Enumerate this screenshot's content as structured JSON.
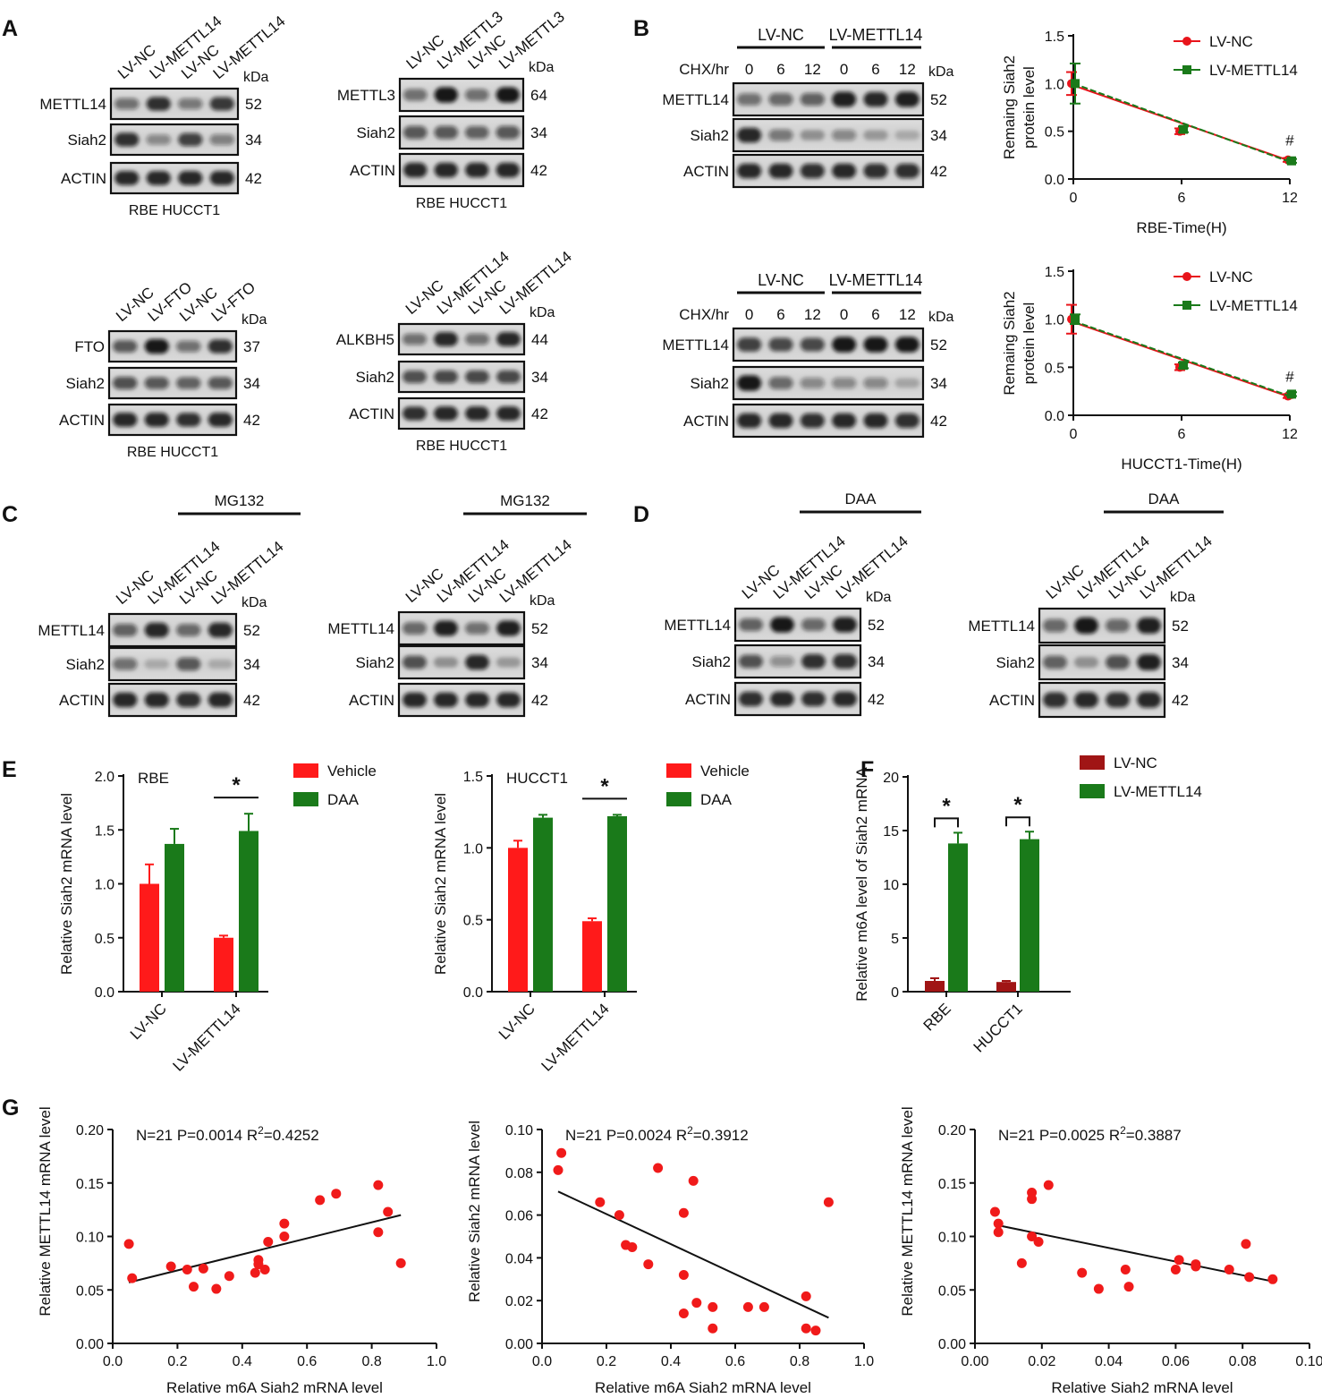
{
  "panel_letters": [
    "A",
    "B",
    "C",
    "D",
    "E",
    "F",
    "G"
  ],
  "text": {
    "kda": "kDa",
    "chx": "CHX/hr",
    "time_pts": [
      "0",
      "6",
      "12",
      "0",
      "6",
      "12"
    ],
    "lvnc": "LV-NC",
    "lvm14": "LV-METTL14",
    "mg132": "MG132",
    "daa": "DAA"
  },
  "blots": [
    {
      "id": "A1",
      "lanes": [
        "LV-NC",
        "LV-METTL14",
        "LV-NC",
        "LV-METTL14"
      ],
      "rows": [
        {
          "name": "METTL14",
          "kda": "52"
        },
        {
          "name": "Siah2",
          "kda": "34"
        },
        {
          "name": "ACTIN",
          "kda": "42"
        }
      ],
      "caption": "RBE HUCCT1"
    },
    {
      "id": "A2",
      "lanes": [
        "LV-NC",
        "LV-METTL3",
        "LV-NC",
        "LV-METTL3"
      ],
      "rows": [
        {
          "name": "METTL3",
          "kda": "64"
        },
        {
          "name": "Siah2",
          "kda": "34"
        },
        {
          "name": "ACTIN",
          "kda": "42"
        }
      ],
      "caption": "RBE HUCCT1"
    },
    {
      "id": "A3",
      "lanes": [
        "LV-NC",
        "LV-FTO",
        "LV-NC",
        "LV-FTO"
      ],
      "rows": [
        {
          "name": "FTO",
          "kda": "37"
        },
        {
          "name": "Siah2",
          "kda": "34"
        },
        {
          "name": "ACTIN",
          "kda": "42"
        }
      ],
      "caption": "RBE HUCCT1"
    },
    {
      "id": "A4",
      "lanes": [
        "LV-NC",
        "LV-METTL14",
        "LV-NC",
        "LV-METTL14"
      ],
      "rows": [
        {
          "name": "ALKBH5",
          "kda": "44"
        },
        {
          "name": "Siah2",
          "kda": "34"
        },
        {
          "name": "ACTIN",
          "kda": "42"
        }
      ],
      "caption": "RBE HUCCT1"
    },
    {
      "id": "B1",
      "rows": [
        {
          "name": "METTL14",
          "kda": "52"
        },
        {
          "name": "Siah2",
          "kda": "34"
        },
        {
          "name": "ACTIN",
          "kda": "42"
        }
      ]
    },
    {
      "id": "B2",
      "rows": [
        {
          "name": "METTL14",
          "kda": "52"
        },
        {
          "name": "Siah2",
          "kda": "34"
        },
        {
          "name": "ACTIN",
          "kda": "42"
        }
      ]
    },
    {
      "id": "C1",
      "lanes": [
        "LV-NC",
        "LV-METTL14",
        "LV-NC",
        "LV-METTL14"
      ],
      "treat": "MG132",
      "rows": [
        {
          "name": "METTL14",
          "kda": "52"
        },
        {
          "name": "Siah2",
          "kda": "34"
        },
        {
          "name": "ACTIN",
          "kda": "42"
        }
      ]
    },
    {
      "id": "C2",
      "lanes": [
        "LV-NC",
        "LV-METTL14",
        "LV-NC",
        "LV-METTL14"
      ],
      "treat": "MG132",
      "rows": [
        {
          "name": "METTL14",
          "kda": "52"
        },
        {
          "name": "Siah2",
          "kda": "34"
        },
        {
          "name": "ACTIN",
          "kda": "42"
        }
      ]
    },
    {
      "id": "D1",
      "lanes": [
        "LV-NC",
        "LV-METTL14",
        "LV-NC",
        "LV-METTL14"
      ],
      "treat": "DAA",
      "rows": [
        {
          "name": "METTL14",
          "kda": "52"
        },
        {
          "name": "Siah2",
          "kda": "34"
        },
        {
          "name": "ACTIN",
          "kda": "42"
        }
      ]
    },
    {
      "id": "D2",
      "lanes": [
        "LV-NC",
        "LV-METTL14",
        "LV-NC",
        "LV-METTL14"
      ],
      "treat": "DAA",
      "rows": [
        {
          "name": "METTL14",
          "kda": "52"
        },
        {
          "name": "Siah2",
          "kda": "34"
        },
        {
          "name": "ACTIN",
          "kda": "42"
        }
      ]
    }
  ],
  "chart_data": [
    {
      "id": "B_RBE",
      "type": "line",
      "xlabel": "RBE-Time(H)",
      "ylabel": "Remaing Siah2 protein level",
      "x": [
        0,
        6,
        12
      ],
      "xlim": [
        0,
        12
      ],
      "ylim": [
        0,
        1.5
      ],
      "xticks": [
        "0",
        "6",
        "12"
      ],
      "yticks": [
        "0.0",
        "0.5",
        "1.0",
        "1.5"
      ],
      "series": [
        {
          "name": "LV-NC",
          "color": "#e8141b",
          "values": [
            1.0,
            0.5,
            0.2
          ],
          "err": [
            0.12,
            0.03,
            0.02
          ],
          "fit": [
            0.98,
            0.19
          ]
        },
        {
          "name": "LV-METTL14",
          "color": "#1a7a1a",
          "values": [
            1.0,
            0.52,
            0.19
          ],
          "err": [
            0.21,
            0.03,
            0.02
          ],
          "fit": [
            1.0,
            0.18
          ]
        }
      ],
      "annotation": "#"
    },
    {
      "id": "B_HUCCT1",
      "type": "line",
      "xlabel": "HUCCT1-Time(H)",
      "ylabel": "Remaing Siah2 protein level",
      "x": [
        0,
        6,
        12
      ],
      "xlim": [
        0,
        12
      ],
      "ylim": [
        0,
        1.5
      ],
      "xticks": [
        "0",
        "6",
        "12"
      ],
      "yticks": [
        "0.0",
        "0.5",
        "1.0",
        "1.5"
      ],
      "series": [
        {
          "name": "LV-NC",
          "color": "#e8141b",
          "values": [
            1.0,
            0.5,
            0.2
          ],
          "err": [
            0.15,
            0.03,
            0.02
          ],
          "fit": [
            0.97,
            0.19
          ]
        },
        {
          "name": "LV-METTL14",
          "color": "#1a7a1a",
          "values": [
            1.0,
            0.52,
            0.22
          ],
          "err": [
            0.05,
            0.03,
            0.02
          ],
          "fit": [
            0.98,
            0.2
          ]
        }
      ],
      "annotation": "#"
    },
    {
      "id": "E_RBE",
      "type": "bar",
      "title": "RBE",
      "ylabel": "Relative Siah2 mRNA level",
      "categories": [
        "LV-NC",
        "LV-METTL14"
      ],
      "ylim": [
        0,
        2.0
      ],
      "yticks": [
        "0.0",
        "0.5",
        "1.0",
        "1.5",
        "2.0"
      ],
      "series": [
        {
          "name": "Vehicle",
          "color": "#ff1a1a",
          "values": [
            1.0,
            0.5
          ],
          "err": [
            0.18,
            0.02
          ]
        },
        {
          "name": "DAA",
          "color": "#1a7a1a",
          "values": [
            1.37,
            1.49
          ],
          "err": [
            0.14,
            0.16
          ]
        }
      ],
      "significance": "*"
    },
    {
      "id": "E_HUCCT1",
      "type": "bar",
      "title": "HUCCT1",
      "ylabel": "Relative Siah2 mRNA level",
      "categories": [
        "LV-NC",
        "LV-METTL14"
      ],
      "ylim": [
        0,
        1.5
      ],
      "yticks": [
        "0.0",
        "0.5",
        "1.0",
        "1.5"
      ],
      "series": [
        {
          "name": "Vehicle",
          "color": "#ff1a1a",
          "values": [
            1.0,
            0.49
          ],
          "err": [
            0.05,
            0.02
          ]
        },
        {
          "name": "DAA",
          "color": "#1a7a1a",
          "values": [
            1.21,
            1.22
          ],
          "err": [
            0.02,
            0.01
          ]
        }
      ],
      "significance": "*"
    },
    {
      "id": "F",
      "type": "bar",
      "ylabel": "Relative m6A level of Siah2 mRNA",
      "categories": [
        "RBE",
        "HUCCT1"
      ],
      "ylim": [
        0,
        20
      ],
      "yticks": [
        "0",
        "5",
        "10",
        "15",
        "20"
      ],
      "series": [
        {
          "name": "LV-NC",
          "color": "#a01515",
          "values": [
            1.0,
            0.9
          ],
          "err": [
            0.25,
            0.1
          ]
        },
        {
          "name": "LV-METTL14",
          "color": "#1a7a1a",
          "values": [
            13.8,
            14.2
          ],
          "err": [
            1.0,
            0.7
          ]
        }
      ],
      "significance": "*"
    },
    {
      "id": "G1",
      "type": "scatter",
      "stats": "N=21 P=0.0014  R",
      "stats_tail": "=0.4252",
      "sup": "2",
      "xlabel": "Relative m6A Siah2 mRNA level",
      "ylabel": "Relative METTL14 mRNA level",
      "xlim": [
        0,
        1.0
      ],
      "ylim": [
        0,
        0.2
      ],
      "xticks": [
        "0.0",
        "0.2",
        "0.4",
        "0.6",
        "0.8",
        "1.0"
      ],
      "yticks": [
        "0.00",
        "0.05",
        "0.10",
        "0.15",
        "0.20"
      ],
      "fit": [
        [
          0.05,
          0.057
        ],
        [
          0.89,
          0.12
        ]
      ],
      "points": [
        [
          0.05,
          0.093
        ],
        [
          0.06,
          0.061
        ],
        [
          0.18,
          0.072
        ],
        [
          0.23,
          0.069
        ],
        [
          0.25,
          0.053
        ],
        [
          0.28,
          0.07
        ],
        [
          0.32,
          0.051
        ],
        [
          0.36,
          0.063
        ],
        [
          0.44,
          0.066
        ],
        [
          0.45,
          0.078
        ],
        [
          0.45,
          0.074
        ],
        [
          0.47,
          0.069
        ],
        [
          0.48,
          0.095
        ],
        [
          0.53,
          0.1
        ],
        [
          0.53,
          0.112
        ],
        [
          0.64,
          0.134
        ],
        [
          0.69,
          0.14
        ],
        [
          0.82,
          0.148
        ],
        [
          0.82,
          0.104
        ],
        [
          0.85,
          0.123
        ],
        [
          0.89,
          0.075
        ]
      ]
    },
    {
      "id": "G2",
      "type": "scatter",
      "stats": "N=21 P=0.0024  R",
      "stats_tail": "=0.3912",
      "sup": "2",
      "xlabel": "Relative m6A Siah2 mRNA level",
      "ylabel": "Relative Siah2 mRNA level",
      "xlim": [
        0,
        1.0
      ],
      "ylim": [
        0,
        0.1
      ],
      "xticks": [
        "0.0",
        "0.2",
        "0.4",
        "0.6",
        "0.8",
        "1.0"
      ],
      "yticks": [
        "0.00",
        "0.02",
        "0.04",
        "0.06",
        "0.08",
        "0.10"
      ],
      "fit": [
        [
          0.05,
          0.071
        ],
        [
          0.89,
          0.012
        ]
      ],
      "points": [
        [
          0.05,
          0.081
        ],
        [
          0.06,
          0.089
        ],
        [
          0.18,
          0.066
        ],
        [
          0.24,
          0.06
        ],
        [
          0.26,
          0.046
        ],
        [
          0.28,
          0.045
        ],
        [
          0.33,
          0.037
        ],
        [
          0.36,
          0.082
        ],
        [
          0.44,
          0.061
        ],
        [
          0.44,
          0.032
        ],
        [
          0.44,
          0.014
        ],
        [
          0.47,
          0.076
        ],
        [
          0.48,
          0.019
        ],
        [
          0.53,
          0.017
        ],
        [
          0.53,
          0.007
        ],
        [
          0.64,
          0.017
        ],
        [
          0.69,
          0.017
        ],
        [
          0.82,
          0.022
        ],
        [
          0.82,
          0.007
        ],
        [
          0.85,
          0.006
        ],
        [
          0.89,
          0.066
        ]
      ]
    },
    {
      "id": "G3",
      "type": "scatter",
      "stats": "N=21 P=0.0025  R",
      "stats_tail": "=0.3887",
      "sup": "2",
      "xlabel": "Relative Siah2 mRNA level",
      "ylabel": "Relative METTL14 mRNA level",
      "xlim": [
        0,
        0.1
      ],
      "ylim": [
        0,
        0.2
      ],
      "xticks": [
        "0.00",
        "0.02",
        "0.04",
        "0.06",
        "0.08",
        "0.10"
      ],
      "yticks": [
        "0.00",
        "0.05",
        "0.10",
        "0.15",
        "0.20"
      ],
      "fit": [
        [
          0.006,
          0.111
        ],
        [
          0.089,
          0.058
        ]
      ],
      "points": [
        [
          0.006,
          0.123
        ],
        [
          0.007,
          0.112
        ],
        [
          0.007,
          0.104
        ],
        [
          0.014,
          0.075
        ],
        [
          0.017,
          0.141
        ],
        [
          0.017,
          0.135
        ],
        [
          0.017,
          0.1
        ],
        [
          0.019,
          0.095
        ],
        [
          0.022,
          0.148
        ],
        [
          0.032,
          0.066
        ],
        [
          0.037,
          0.051
        ],
        [
          0.045,
          0.069
        ],
        [
          0.046,
          0.053
        ],
        [
          0.06,
          0.069
        ],
        [
          0.061,
          0.078
        ],
        [
          0.066,
          0.074
        ],
        [
          0.066,
          0.072
        ],
        [
          0.076,
          0.069
        ],
        [
          0.081,
          0.093
        ],
        [
          0.082,
          0.062
        ],
        [
          0.089,
          0.06
        ]
      ]
    }
  ]
}
